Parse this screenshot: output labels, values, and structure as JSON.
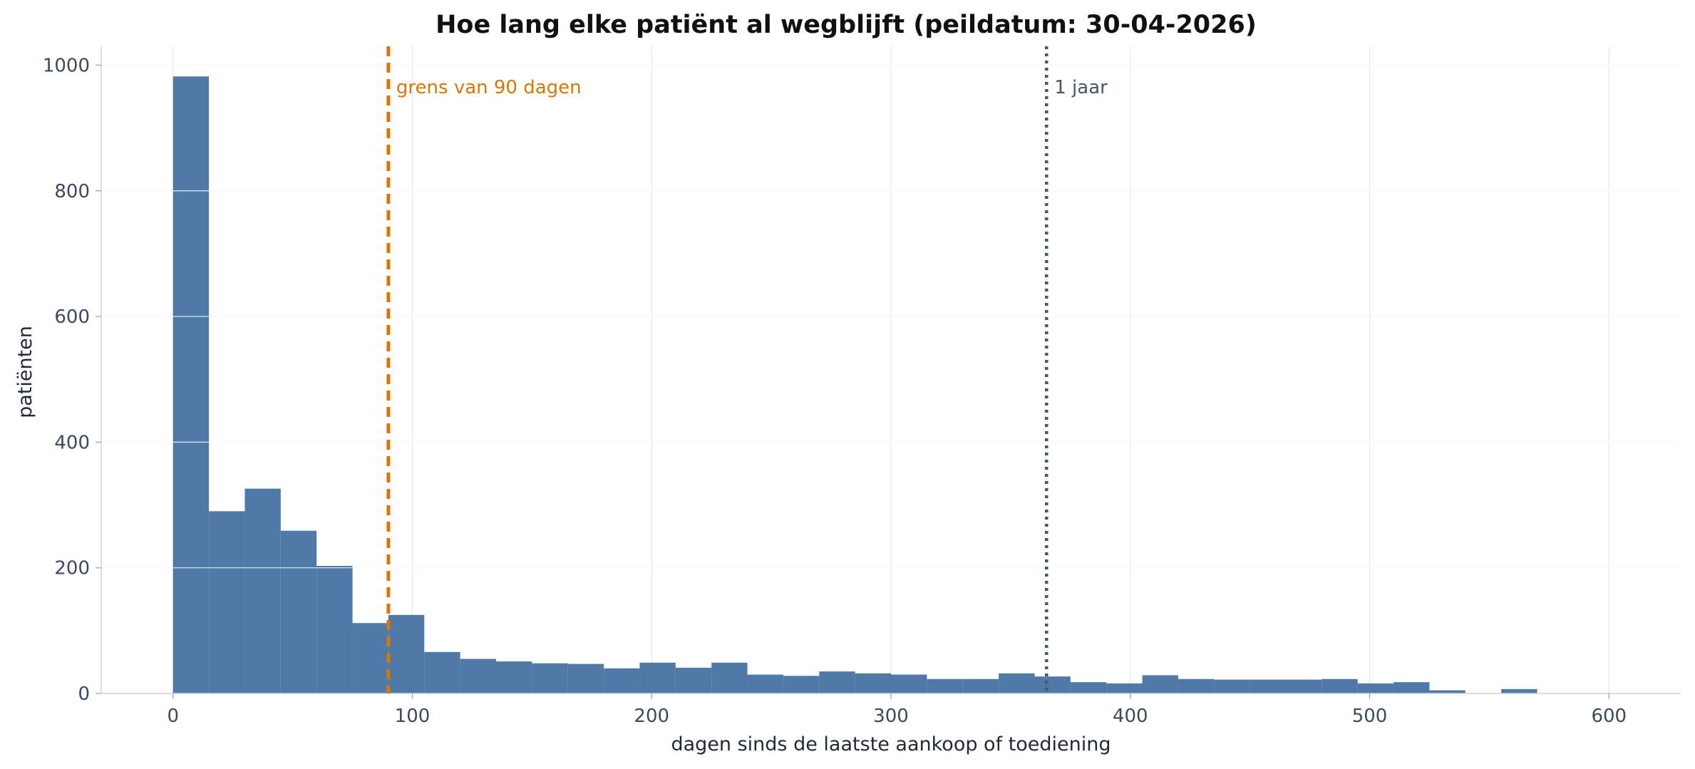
{
  "chart_data": {
    "type": "bar",
    "title": "Hoe lang elke patiënt al wegblijft (peildatum: 30-04-2026)",
    "xlabel": "dagen sinds de laatste aankoop of toediening",
    "ylabel": "patiënten",
    "xlim": [
      -30,
      630
    ],
    "ylim": [
      0,
      1030
    ],
    "xticks": [
      0,
      100,
      200,
      300,
      400,
      500,
      600
    ],
    "yticks": [
      0,
      200,
      400,
      600,
      800,
      1000
    ],
    "grid": true,
    "bin_width": 15,
    "bins": [
      {
        "x0": 0,
        "x1": 15,
        "value": 982
      },
      {
        "x0": 15,
        "x1": 30,
        "value": 290
      },
      {
        "x0": 30,
        "x1": 45,
        "value": 326
      },
      {
        "x0": 45,
        "x1": 60,
        "value": 259
      },
      {
        "x0": 60,
        "x1": 75,
        "value": 203
      },
      {
        "x0": 75,
        "x1": 90,
        "value": 112
      },
      {
        "x0": 90,
        "x1": 105,
        "value": 125
      },
      {
        "x0": 105,
        "x1": 120,
        "value": 66
      },
      {
        "x0": 120,
        "x1": 135,
        "value": 55
      },
      {
        "x0": 135,
        "x1": 150,
        "value": 51
      },
      {
        "x0": 150,
        "x1": 165,
        "value": 48
      },
      {
        "x0": 165,
        "x1": 180,
        "value": 47
      },
      {
        "x0": 180,
        "x1": 195,
        "value": 40
      },
      {
        "x0": 195,
        "x1": 210,
        "value": 49
      },
      {
        "x0": 210,
        "x1": 225,
        "value": 41
      },
      {
        "x0": 225,
        "x1": 240,
        "value": 49
      },
      {
        "x0": 240,
        "x1": 255,
        "value": 30
      },
      {
        "x0": 255,
        "x1": 270,
        "value": 28
      },
      {
        "x0": 270,
        "x1": 285,
        "value": 35
      },
      {
        "x0": 285,
        "x1": 300,
        "value": 32
      },
      {
        "x0": 300,
        "x1": 315,
        "value": 30
      },
      {
        "x0": 315,
        "x1": 330,
        "value": 23
      },
      {
        "x0": 330,
        "x1": 345,
        "value": 23
      },
      {
        "x0": 345,
        "x1": 360,
        "value": 32
      },
      {
        "x0": 360,
        "x1": 375,
        "value": 27
      },
      {
        "x0": 375,
        "x1": 390,
        "value": 18
      },
      {
        "x0": 390,
        "x1": 405,
        "value": 16
      },
      {
        "x0": 405,
        "x1": 420,
        "value": 29
      },
      {
        "x0": 420,
        "x1": 435,
        "value": 23
      },
      {
        "x0": 435,
        "x1": 450,
        "value": 22
      },
      {
        "x0": 450,
        "x1": 465,
        "value": 22
      },
      {
        "x0": 465,
        "x1": 480,
        "value": 22
      },
      {
        "x0": 480,
        "x1": 495,
        "value": 23
      },
      {
        "x0": 495,
        "x1": 510,
        "value": 16
      },
      {
        "x0": 510,
        "x1": 525,
        "value": 18
      },
      {
        "x0": 525,
        "x1": 540,
        "value": 5
      },
      {
        "x0": 540,
        "x1": 555,
        "value": 0
      },
      {
        "x0": 555,
        "x1": 570,
        "value": 7
      }
    ],
    "reference_lines": [
      {
        "x": 90,
        "label": "grens van 90 dagen",
        "style": "dashed",
        "color": "#d97706"
      },
      {
        "x": 365,
        "label": "1 jaar",
        "style": "dotted",
        "color": "#475569"
      }
    ],
    "colors": {
      "bar": "#4f79a6",
      "text": "#3b4a5c",
      "grid": "#e6e8ee"
    }
  }
}
